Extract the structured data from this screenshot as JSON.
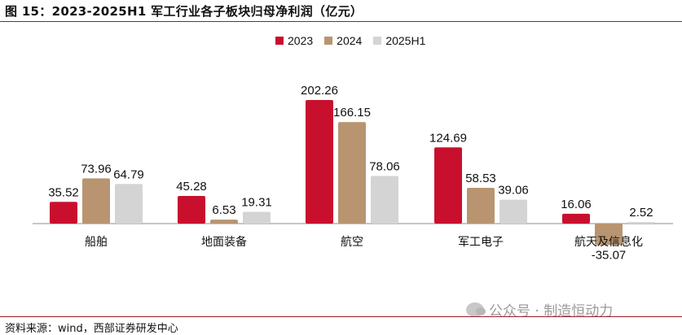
{
  "header": {
    "title": "图 15：2023-2025H1 军工行业各子板块归母净利润（亿元）"
  },
  "colors": {
    "s2023": "#c8102e",
    "s2024": "#b89570",
    "s2025h1": "#d4d4d4",
    "rule": "#9b1b2a"
  },
  "chart_data": {
    "type": "bar",
    "title": "",
    "xlabel": "",
    "ylabel": "",
    "categories": [
      "船舶",
      "地面装备",
      "航空",
      "军工电子",
      "航天及信息化"
    ],
    "series": [
      {
        "name": "2023",
        "values": [
          35.52,
          45.28,
          202.26,
          124.69,
          16.06
        ]
      },
      {
        "name": "2024",
        "values": [
          73.96,
          6.53,
          166.15,
          58.53,
          -35.07
        ]
      },
      {
        "name": "2025H1",
        "values": [
          64.79,
          19.31,
          78.06,
          39.06,
          2.52
        ]
      }
    ],
    "data_labels": [
      [
        "35.52",
        "45.28",
        "202.26",
        "124.69",
        "16.06"
      ],
      [
        "73.96",
        "6.53",
        "166.15",
        "58.53",
        "-35.07"
      ],
      [
        "64.79",
        "19.31",
        "78.06",
        "39.06",
        "2.52"
      ]
    ],
    "legend_position": "top-center",
    "grid": false
  },
  "watermark": {
    "text": "公众号 · 制造恒动力",
    "icon": "wechat-icon"
  },
  "footer": {
    "source": "资料来源：wind，西部证券研发中心"
  }
}
